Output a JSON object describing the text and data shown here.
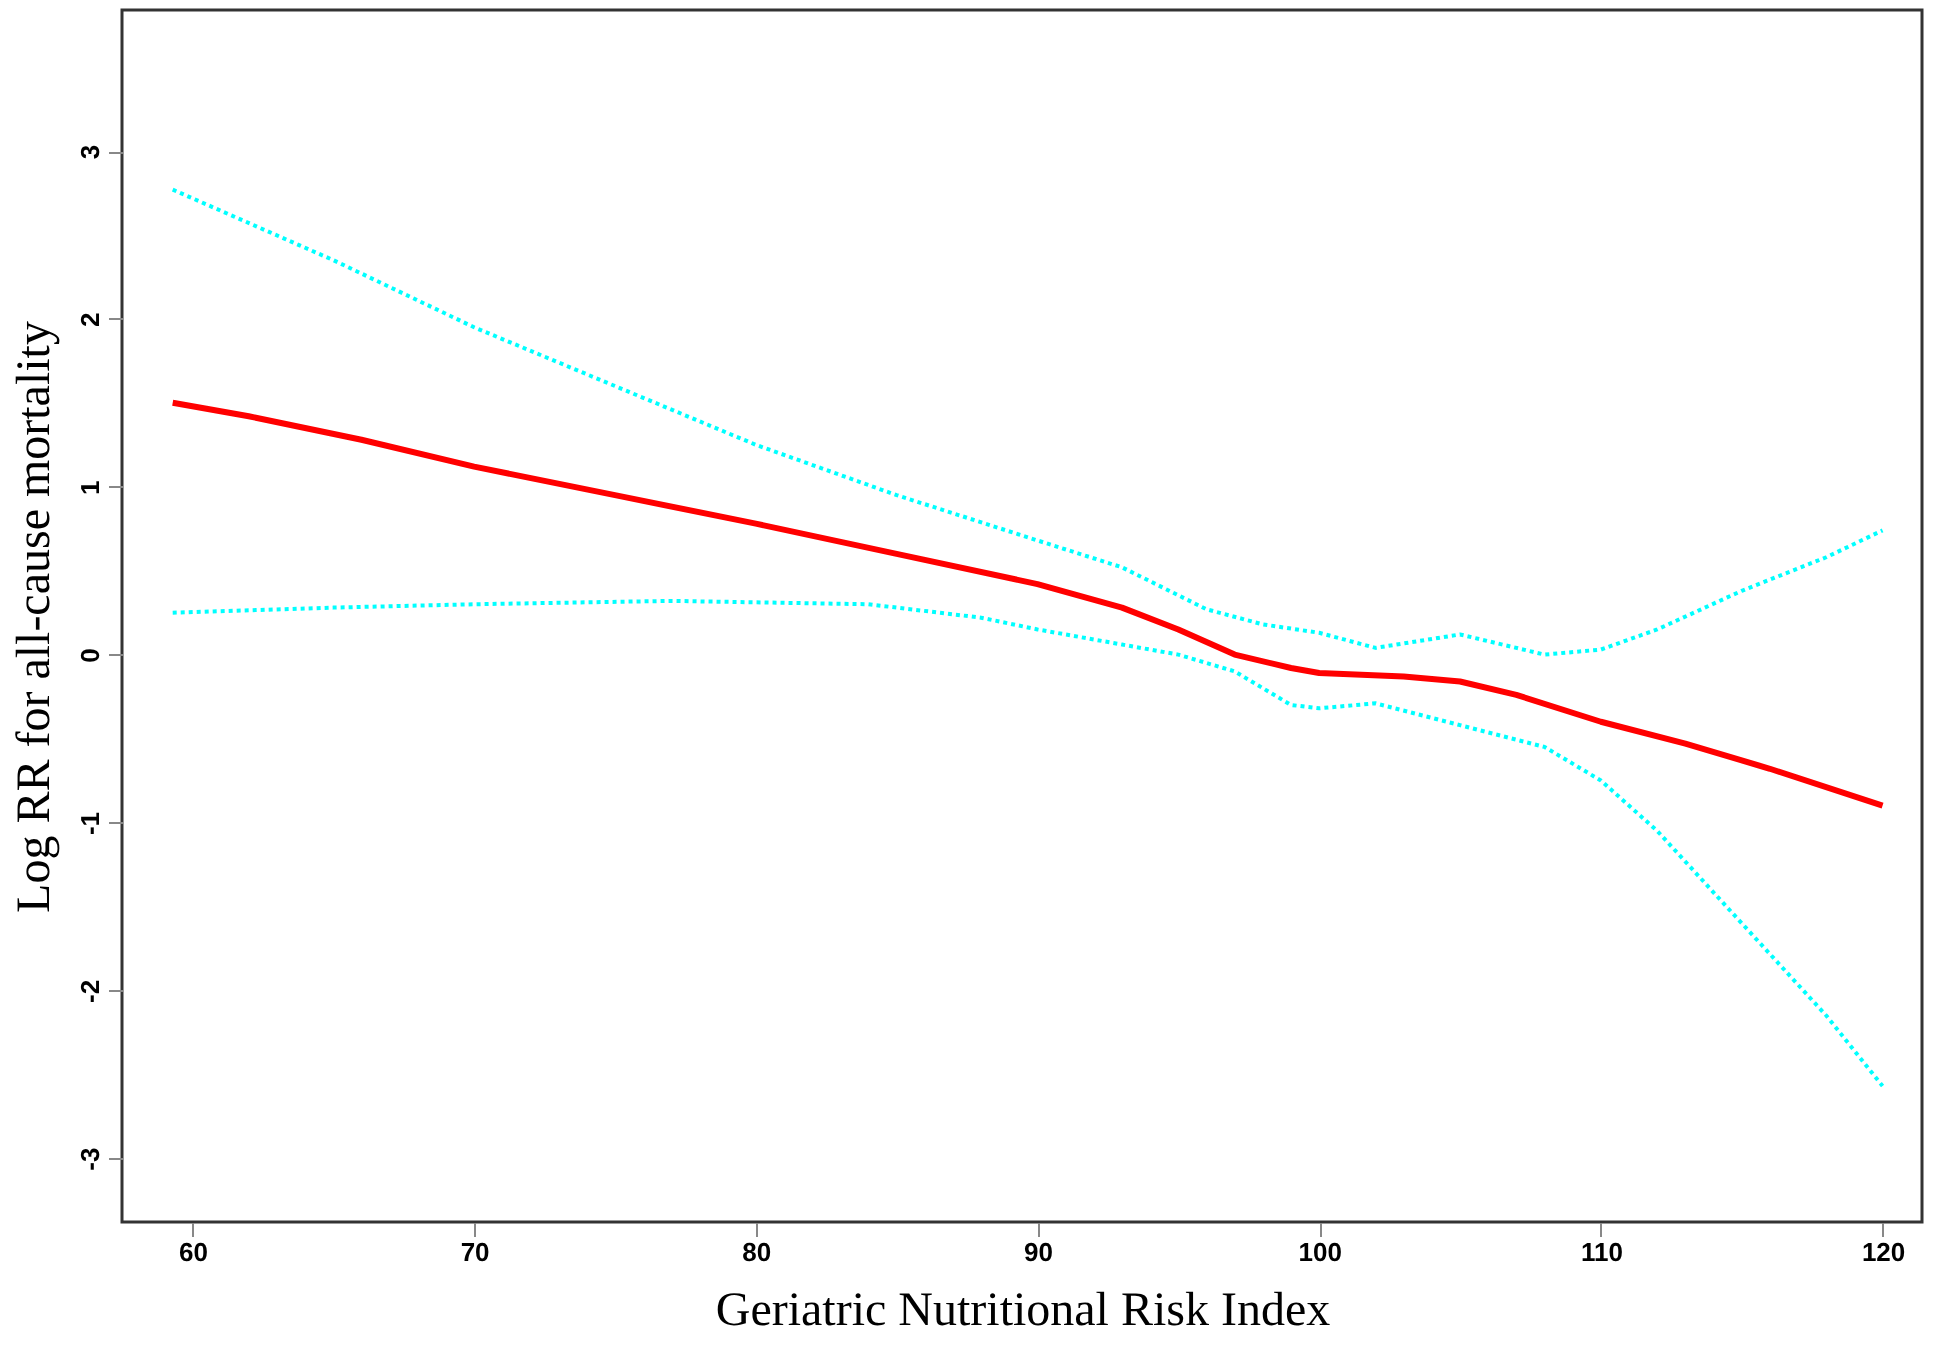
{
  "chart_data": {
    "type": "line",
    "xlabel": "Geriatric Nutritional Risk Index",
    "ylabel": "Log RR for all-cause mortality",
    "xlim": [
      57.5,
      121.4
    ],
    "ylim": [
      -3.38,
      3.84
    ],
    "xticks": [
      60,
      70,
      80,
      90,
      100,
      110,
      120
    ],
    "yticks": [
      -3,
      -2,
      -1,
      0,
      1,
      2,
      3
    ],
    "grid": false,
    "series": [
      {
        "color": "#00ffff",
        "line_style": "dotted",
        "x": [
          59.3,
          65,
          70,
          75,
          80,
          85,
          90,
          93,
          96,
          98,
          100,
          102,
          105,
          108,
          110,
          112,
          115,
          118,
          120
        ],
        "values": [
          2.77,
          2.35,
          1.95,
          1.6,
          1.25,
          0.95,
          0.68,
          0.52,
          0.27,
          0.18,
          0.13,
          0.04,
          0.12,
          0.0,
          0.03,
          0.15,
          0.38,
          0.58,
          0.74
        ]
      },
      {
        "color": "#ff0000",
        "line_style": "solid",
        "x": [
          59.3,
          62,
          66,
          70,
          75,
          80,
          85,
          90,
          93,
          95,
          97,
          99,
          100,
          103,
          105,
          107,
          110,
          113,
          116,
          120
        ],
        "values": [
          1.5,
          1.42,
          1.28,
          1.12,
          0.95,
          0.78,
          0.6,
          0.42,
          0.28,
          0.15,
          0.0,
          -0.08,
          -0.11,
          -0.13,
          -0.16,
          -0.24,
          -0.4,
          -0.53,
          -0.68,
          -0.9
        ]
      },
      {
        "color": "#00ffff",
        "line_style": "dotted",
        "x": [
          59.3,
          65,
          70,
          77,
          84,
          88,
          90,
          93,
          95,
          97,
          99,
          100,
          102,
          105,
          108,
          110,
          112,
          115,
          118,
          120
        ],
        "values": [
          0.25,
          0.28,
          0.3,
          0.32,
          0.3,
          0.22,
          0.15,
          0.06,
          0.0,
          -0.1,
          -0.3,
          -0.32,
          -0.29,
          -0.42,
          -0.55,
          -0.75,
          -1.05,
          -1.6,
          -2.15,
          -2.57
        ]
      }
    ]
  }
}
